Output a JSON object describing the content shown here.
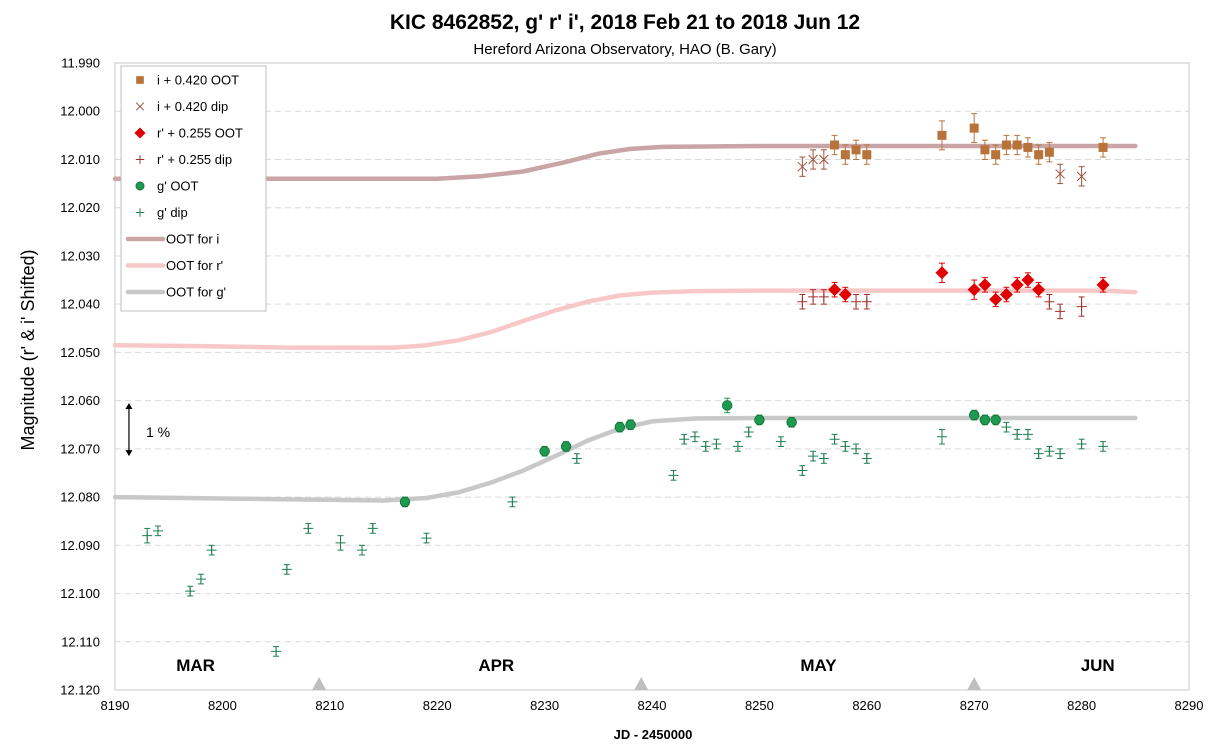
{
  "chart_data": {
    "type": "scatter",
    "title": "KIC 8462852, g' r' i', 2018 Feb 21 to 2018 Jun 12",
    "subtitle": "Hereford Arizona Observatory, HAO (B. Gary)",
    "xlabel": "JD - 2450000",
    "ylabel": "Magnitude  (r' & i' Shifted)",
    "xlim": [
      8190,
      8290
    ],
    "ylim": [
      11.99,
      12.12
    ],
    "y_inverted": true,
    "xticks": [
      8190,
      8200,
      8210,
      8220,
      8230,
      8240,
      8250,
      8260,
      8270,
      8280,
      8290
    ],
    "yticks": [
      "11.990",
      "12.000",
      "12.010",
      "12.020",
      "12.030",
      "12.040",
      "12.050",
      "12.060",
      "12.070",
      "12.080",
      "12.090",
      "12.100",
      "12.110",
      "12.120"
    ],
    "grid": "horizontal dashed",
    "legend_position": "top-left",
    "month_labels": [
      {
        "text": "MAR",
        "x": 8197.5
      },
      {
        "text": "APR",
        "x": 8225.5
      },
      {
        "text": "MAY",
        "x": 8255.5
      },
      {
        "text": "JUN",
        "x": 8281.5
      }
    ],
    "month_markers_x": [
      8209,
      8239,
      8270
    ],
    "scale_bar": {
      "label": "1 %",
      "y_from": 12.0605,
      "y_to": 12.0715,
      "x": 8191.3
    },
    "series": [
      {
        "name": "i + 0.420 OOT",
        "kind": "points",
        "marker": "square",
        "color": "#B8733A",
        "points": [
          {
            "x": 8257,
            "y": 12.007,
            "err": 0.002
          },
          {
            "x": 8258,
            "y": 12.009,
            "err": 0.002
          },
          {
            "x": 8259,
            "y": 12.008,
            "err": 0.002
          },
          {
            "x": 8260,
            "y": 12.009,
            "err": 0.002
          },
          {
            "x": 8267,
            "y": 12.005,
            "err": 0.003
          },
          {
            "x": 8270,
            "y": 12.0035,
            "err": 0.003
          },
          {
            "x": 8271,
            "y": 12.008,
            "err": 0.002
          },
          {
            "x": 8272,
            "y": 12.009,
            "err": 0.002
          },
          {
            "x": 8273,
            "y": 12.007,
            "err": 0.002
          },
          {
            "x": 8274,
            "y": 12.007,
            "err": 0.002
          },
          {
            "x": 8275,
            "y": 12.0075,
            "err": 0.002
          },
          {
            "x": 8276,
            "y": 12.009,
            "err": 0.002
          },
          {
            "x": 8277,
            "y": 12.0085,
            "err": 0.002
          },
          {
            "x": 8282,
            "y": 12.0075,
            "err": 0.002
          }
        ]
      },
      {
        "name": "i + 0.420 dip",
        "kind": "points",
        "marker": "x",
        "color": "#A0523C",
        "points": [
          {
            "x": 8254,
            "y": 12.0115,
            "err": 0.002
          },
          {
            "x": 8255,
            "y": 12.01,
            "err": 0.002
          },
          {
            "x": 8256,
            "y": 12.01,
            "err": 0.002
          },
          {
            "x": 8278,
            "y": 12.013,
            "err": 0.002
          },
          {
            "x": 8280,
            "y": 12.0135,
            "err": 0.002
          }
        ]
      },
      {
        "name": "r' + 0.255 OOT",
        "kind": "points",
        "marker": "diamond",
        "color": "#E00000",
        "points": [
          {
            "x": 8257,
            "y": 12.037,
            "err": 0.0015
          },
          {
            "x": 8258,
            "y": 12.038,
            "err": 0.0015
          },
          {
            "x": 8267,
            "y": 12.0335,
            "err": 0.002
          },
          {
            "x": 8270,
            "y": 12.037,
            "err": 0.002
          },
          {
            "x": 8271,
            "y": 12.036,
            "err": 0.0015
          },
          {
            "x": 8272,
            "y": 12.039,
            "err": 0.0015
          },
          {
            "x": 8273,
            "y": 12.038,
            "err": 0.0015
          },
          {
            "x": 8274,
            "y": 12.036,
            "err": 0.0015
          },
          {
            "x": 8275,
            "y": 12.035,
            "err": 0.0015
          },
          {
            "x": 8276,
            "y": 12.037,
            "err": 0.0015
          },
          {
            "x": 8282,
            "y": 12.036,
            "err": 0.0015
          }
        ]
      },
      {
        "name": "r' + 0.255 dip",
        "kind": "points",
        "marker": "plus",
        "color": "#A0302C",
        "points": [
          {
            "x": 8254,
            "y": 12.0395,
            "err": 0.0015
          },
          {
            "x": 8255,
            "y": 12.0385,
            "err": 0.0015
          },
          {
            "x": 8256,
            "y": 12.0385,
            "err": 0.0015
          },
          {
            "x": 8259,
            "y": 12.0395,
            "err": 0.0015
          },
          {
            "x": 8260,
            "y": 12.0395,
            "err": 0.0015
          },
          {
            "x": 8277,
            "y": 12.0395,
            "err": 0.0015
          },
          {
            "x": 8278,
            "y": 12.0415,
            "err": 0.0015
          },
          {
            "x": 8280,
            "y": 12.0405,
            "err": 0.002
          }
        ]
      },
      {
        "name": "g' OOT",
        "kind": "points",
        "marker": "circle",
        "color": "#1E9A50",
        "points": [
          {
            "x": 8217,
            "y": 12.081,
            "err": 0.001
          },
          {
            "x": 8230,
            "y": 12.0705,
            "err": 0.001
          },
          {
            "x": 8232,
            "y": 12.0695,
            "err": 0.001
          },
          {
            "x": 8237,
            "y": 12.0655,
            "err": 0.001
          },
          {
            "x": 8238,
            "y": 12.065,
            "err": 0.001
          },
          {
            "x": 8247,
            "y": 12.061,
            "err": 0.0015
          },
          {
            "x": 8250,
            "y": 12.064,
            "err": 0.001
          },
          {
            "x": 8253,
            "y": 12.0645,
            "err": 0.001
          },
          {
            "x": 8270,
            "y": 12.063,
            "err": 0.001
          },
          {
            "x": 8271,
            "y": 12.064,
            "err": 0.001
          },
          {
            "x": 8272,
            "y": 12.064,
            "err": 0.001
          }
        ]
      },
      {
        "name": "g' dip",
        "kind": "points",
        "marker": "plus",
        "color": "#1E8050",
        "points": [
          {
            "x": 8193,
            "y": 12.088,
            "err": 0.0015
          },
          {
            "x": 8194,
            "y": 12.087,
            "err": 0.001
          },
          {
            "x": 8197,
            "y": 12.0995,
            "err": 0.001
          },
          {
            "x": 8198,
            "y": 12.097,
            "err": 0.001
          },
          {
            "x": 8199,
            "y": 12.091,
            "err": 0.001
          },
          {
            "x": 8205,
            "y": 12.112,
            "err": 0.001
          },
          {
            "x": 8206,
            "y": 12.095,
            "err": 0.001
          },
          {
            "x": 8208,
            "y": 12.0865,
            "err": 0.001
          },
          {
            "x": 8211,
            "y": 12.0895,
            "err": 0.0015
          },
          {
            "x": 8213,
            "y": 12.091,
            "err": 0.001
          },
          {
            "x": 8214,
            "y": 12.0865,
            "err": 0.001
          },
          {
            "x": 8219,
            "y": 12.0885,
            "err": 0.001
          },
          {
            "x": 8227,
            "y": 12.081,
            "err": 0.001
          },
          {
            "x": 8233,
            "y": 12.072,
            "err": 0.001
          },
          {
            "x": 8242,
            "y": 12.0755,
            "err": 0.001
          },
          {
            "x": 8243,
            "y": 12.068,
            "err": 0.001
          },
          {
            "x": 8244,
            "y": 12.0675,
            "err": 0.001
          },
          {
            "x": 8245,
            "y": 12.0695,
            "err": 0.001
          },
          {
            "x": 8246,
            "y": 12.069,
            "err": 0.001
          },
          {
            "x": 8248,
            "y": 12.0695,
            "err": 0.001
          },
          {
            "x": 8249,
            "y": 12.0665,
            "err": 0.001
          },
          {
            "x": 8252,
            "y": 12.0685,
            "err": 0.001
          },
          {
            "x": 8254,
            "y": 12.0745,
            "err": 0.001
          },
          {
            "x": 8255,
            "y": 12.0715,
            "err": 0.001
          },
          {
            "x": 8256,
            "y": 12.072,
            "err": 0.001
          },
          {
            "x": 8257,
            "y": 12.068,
            "err": 0.001
          },
          {
            "x": 8258,
            "y": 12.0695,
            "err": 0.001
          },
          {
            "x": 8259,
            "y": 12.07,
            "err": 0.001
          },
          {
            "x": 8260,
            "y": 12.072,
            "err": 0.001
          },
          {
            "x": 8267,
            "y": 12.0675,
            "err": 0.0015
          },
          {
            "x": 8273,
            "y": 12.0655,
            "err": 0.001
          },
          {
            "x": 8274,
            "y": 12.067,
            "err": 0.001
          },
          {
            "x": 8275,
            "y": 12.067,
            "err": 0.001
          },
          {
            "x": 8276,
            "y": 12.071,
            "err": 0.001
          },
          {
            "x": 8277,
            "y": 12.0705,
            "err": 0.001
          },
          {
            "x": 8278,
            "y": 12.071,
            "err": 0.001
          },
          {
            "x": 8280,
            "y": 12.069,
            "err": 0.001
          },
          {
            "x": 8282,
            "y": 12.0695,
            "err": 0.001
          }
        ]
      },
      {
        "name": "OOT for i",
        "kind": "line",
        "color": "#C9A5A5",
        "points": [
          {
            "x": 8190,
            "y": 12.014
          },
          {
            "x": 8220,
            "y": 12.014
          },
          {
            "x": 8224,
            "y": 12.0135
          },
          {
            "x": 8228,
            "y": 12.0125
          },
          {
            "x": 8232,
            "y": 12.0105
          },
          {
            "x": 8235,
            "y": 12.0088
          },
          {
            "x": 8238,
            "y": 12.0078
          },
          {
            "x": 8241,
            "y": 12.0074
          },
          {
            "x": 8250,
            "y": 12.0072
          },
          {
            "x": 8285,
            "y": 12.0072
          }
        ]
      },
      {
        "name": "OOT for r'",
        "kind": "line",
        "color": "#F8C8C8",
        "points": [
          {
            "x": 8190,
            "y": 12.0485
          },
          {
            "x": 8198,
            "y": 12.0487
          },
          {
            "x": 8206,
            "y": 12.049
          },
          {
            "x": 8216,
            "y": 12.049
          },
          {
            "x": 8219,
            "y": 12.0485
          },
          {
            "x": 8222,
            "y": 12.0475
          },
          {
            "x": 8225,
            "y": 12.0458
          },
          {
            "x": 8228,
            "y": 12.0435
          },
          {
            "x": 8231,
            "y": 12.0413
          },
          {
            "x": 8234,
            "y": 12.0395
          },
          {
            "x": 8237,
            "y": 12.0382
          },
          {
            "x": 8240,
            "y": 12.0376
          },
          {
            "x": 8244,
            "y": 12.0373
          },
          {
            "x": 8250,
            "y": 12.0372
          },
          {
            "x": 8282,
            "y": 12.0372
          },
          {
            "x": 8285,
            "y": 12.0375
          }
        ]
      },
      {
        "name": "OOT for g'",
        "kind": "line",
        "color": "#C8C8C8",
        "points": [
          {
            "x": 8190,
            "y": 12.08
          },
          {
            "x": 8200,
            "y": 12.0803
          },
          {
            "x": 8215,
            "y": 12.0807
          },
          {
            "x": 8219,
            "y": 12.0802
          },
          {
            "x": 8222,
            "y": 12.079
          },
          {
            "x": 8225,
            "y": 12.077
          },
          {
            "x": 8228,
            "y": 12.0745
          },
          {
            "x": 8231,
            "y": 12.0715
          },
          {
            "x": 8234,
            "y": 12.0683
          },
          {
            "x": 8237,
            "y": 12.0658
          },
          {
            "x": 8240,
            "y": 12.0643
          },
          {
            "x": 8244,
            "y": 12.0637
          },
          {
            "x": 8250,
            "y": 12.0636
          },
          {
            "x": 8285,
            "y": 12.0636
          }
        ]
      }
    ]
  }
}
